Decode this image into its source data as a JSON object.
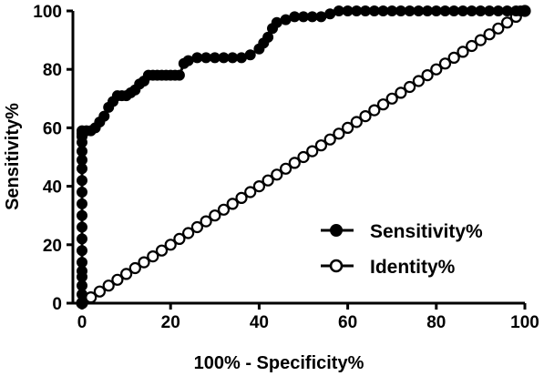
{
  "chart_data": {
    "type": "line",
    "xlabel": "100% - Specificity%",
    "ylabel": "Sensitivity%",
    "xlim": [
      0,
      100
    ],
    "ylim": [
      0,
      100
    ],
    "x_ticks": [
      "0",
      "20",
      "40",
      "60",
      "80",
      "100"
    ],
    "y_ticks": [
      "0",
      "20",
      "40",
      "60",
      "80",
      "100"
    ],
    "grid": false,
    "legend_position": "bottom-right",
    "series": [
      {
        "name": "Sensitivity%",
        "marker": "filled-circle",
        "color": "#000000",
        "x": [
          0,
          0,
          0,
          0,
          0,
          0,
          0,
          0,
          0,
          0,
          0,
          0,
          0,
          0,
          0,
          0,
          0,
          0,
          0,
          0,
          1,
          2,
          3,
          4,
          5,
          6,
          7,
          8,
          9,
          10,
          11,
          12,
          13,
          14,
          15,
          16,
          17,
          18,
          19,
          20,
          21,
          22,
          23,
          24,
          26,
          28,
          30,
          32,
          34,
          36,
          38,
          40,
          41,
          42,
          43,
          44,
          46,
          48,
          50,
          52,
          54,
          56,
          58,
          60,
          62,
          64,
          66,
          68,
          70,
          72,
          74,
          76,
          78,
          80,
          82,
          84,
          86,
          88,
          90,
          92,
          94,
          96,
          98,
          99,
          100
        ],
        "y": [
          0,
          3,
          6,
          9,
          11,
          14,
          18,
          22,
          26,
          30,
          34,
          38,
          42,
          46,
          49,
          52,
          55,
          57,
          58,
          59,
          59,
          59,
          60,
          62,
          64,
          67,
          69,
          71,
          71,
          71,
          72,
          73,
          75,
          76,
          78,
          78,
          78,
          78,
          78,
          78,
          78,
          78,
          82,
          83,
          84,
          84,
          84,
          84,
          84,
          84,
          85,
          87,
          89,
          91,
          94,
          96,
          97,
          98,
          98,
          98,
          98,
          99,
          100,
          100,
          100,
          100,
          100,
          100,
          100,
          100,
          100,
          100,
          100,
          100,
          100,
          100,
          100,
          100,
          100,
          100,
          100,
          100,
          100,
          100,
          100
        ]
      },
      {
        "name": "Identity%",
        "marker": "open-circle",
        "color": "#000000",
        "x": [
          0,
          2,
          4,
          6,
          8,
          10,
          12,
          14,
          16,
          18,
          20,
          22,
          24,
          26,
          28,
          30,
          32,
          34,
          36,
          38,
          40,
          42,
          44,
          46,
          48,
          50,
          52,
          54,
          56,
          58,
          60,
          62,
          64,
          66,
          68,
          70,
          72,
          74,
          76,
          78,
          80,
          82,
          84,
          86,
          88,
          90,
          92,
          94,
          96,
          98,
          100
        ],
        "y": [
          0,
          2,
          4,
          6,
          8,
          10,
          12,
          14,
          16,
          18,
          20,
          22,
          24,
          26,
          28,
          30,
          32,
          34,
          36,
          38,
          40,
          42,
          44,
          46,
          48,
          50,
          52,
          54,
          56,
          58,
          60,
          62,
          64,
          66,
          68,
          70,
          72,
          74,
          76,
          78,
          80,
          82,
          84,
          86,
          88,
          90,
          92,
          94,
          96,
          98,
          100
        ]
      }
    ]
  }
}
